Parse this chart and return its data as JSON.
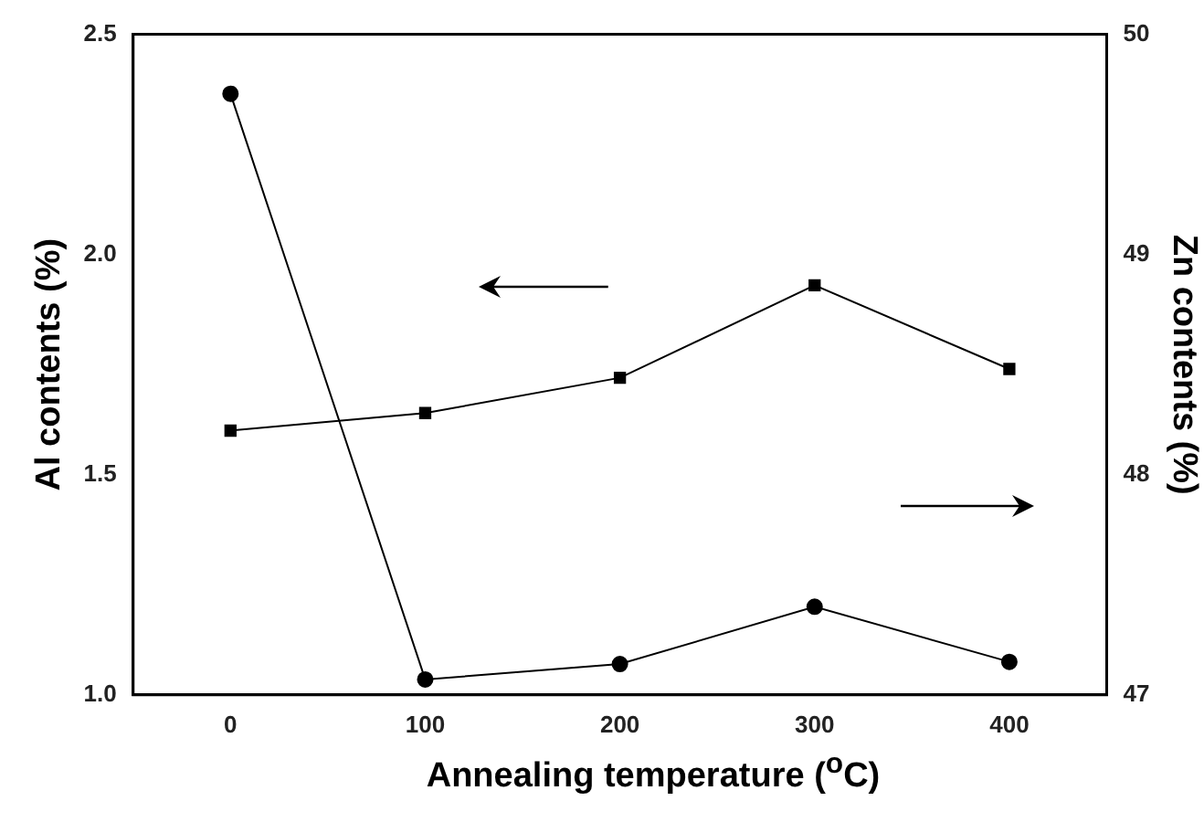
{
  "chart_data": {
    "type": "line",
    "xlabel": "Annealing temperature ($^{o}$C)",
    "ylabel": "Al contents (%)",
    "y2label": "Zn contents (%)",
    "x": [
      0,
      100,
      200,
      300,
      400
    ],
    "xlim": [
      -50,
      450
    ],
    "xticks": [
      0,
      100,
      200,
      300,
      400
    ],
    "ylim": [
      1.0,
      2.5
    ],
    "yticks": [
      {
        "value": 1.0,
        "label": "1.0"
      },
      {
        "value": 1.5,
        "label": "1.5"
      },
      {
        "value": 2.0,
        "label": "2.0"
      },
      {
        "value": 2.5,
        "label": "2.5"
      }
    ],
    "y2lim": [
      47,
      50
    ],
    "y2ticks": [
      47,
      48,
      49,
      50
    ],
    "grid": false,
    "legend": false,
    "series": [
      {
        "color": "#000000",
        "marker": "square",
        "values": [
          1.6,
          1.64,
          1.72,
          1.93,
          1.74
        ]
      },
      {
        "color": "#000000",
        "marker": "circle",
        "axis": "y2",
        "values": [
          49.73,
          47.07,
          47.14,
          47.4,
          47.15
        ]
      }
    ]
  }
}
